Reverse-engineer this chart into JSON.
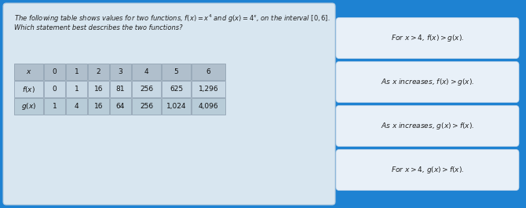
{
  "bg_color": "#1e82d2",
  "main_panel_color": "#d8e6f0",
  "title_line1": "The following table shows values for two functions, $f(x) = x^4$ and $g(x) = 4^x$, on the interval $[0, 6]$.",
  "title_line2": "Which statement best describes the two functions?",
  "table_headers": [
    "$x$",
    "0",
    "1",
    "2",
    "3",
    "4",
    "5",
    "6"
  ],
  "row_f": [
    "$f(x)$",
    "0",
    "1",
    "16",
    "81",
    "256",
    "625",
    "1,296"
  ],
  "row_g": [
    "$g(x)$",
    "1",
    "4",
    "16",
    "64",
    "256",
    "1,024",
    "4,096"
  ],
  "header_row_color": "#b0bfcc",
  "row_f_color": "#c8d8e4",
  "row_g_color": "#b8ccd8",
  "buttons": [
    "For $x > 4$, $f(x) > g(x)$.",
    "As $x$ increases, $f(x) > g(x)$.",
    "As $x$ increases, $g(x) > f(x)$.",
    "For $x > 4$, $g(x) > f(x)$."
  ],
  "button_color": "#e8f0f8",
  "button_edge": "#c8d8e8"
}
